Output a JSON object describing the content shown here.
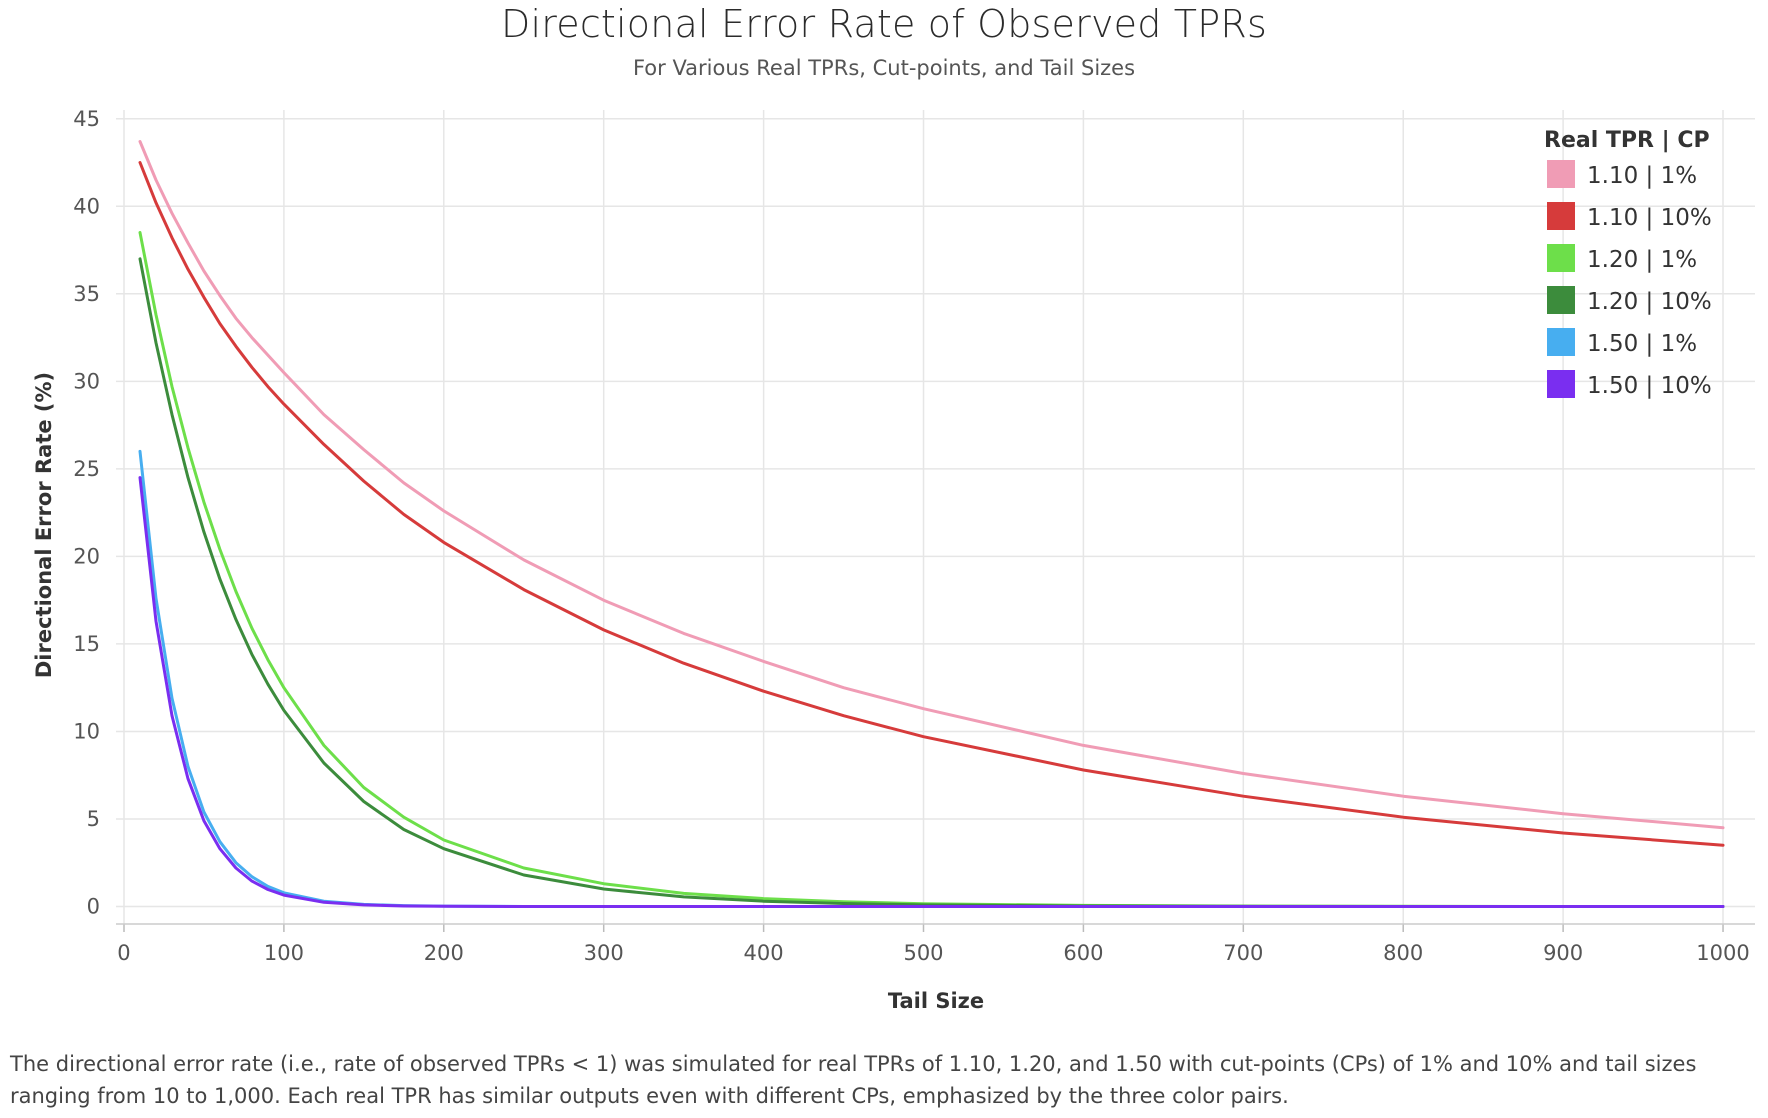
{
  "title": "Directional Error Rate of Observed TPRs",
  "subtitle": "For Various Real TPRs, Cut-points, and Tail Sizes",
  "caption": "The directional error rate (i.e., rate of observed TPRs < 1) was simulated for real TPRs of 1.10, 1.20, and 1.50 with cut-points (CPs) of 1% and 10% and tail sizes ranging from 10 to 1,000. Each real TPR has similar outputs even with different CPs, emphasized by the three color pairs.",
  "chart_data": {
    "type": "line",
    "title": "Directional Error Rate of Observed TPRs",
    "subtitle": "For Various Real TPRs, Cut-points, and Tail Sizes",
    "xlabel": "Tail Size",
    "ylabel": "Directional Error Rate (%)",
    "xlim": [
      -5,
      1020
    ],
    "ylim": [
      -1,
      45.5
    ],
    "xticks": [
      0,
      100,
      200,
      300,
      400,
      500,
      600,
      700,
      800,
      900,
      1000
    ],
    "yticks": [
      0,
      5,
      10,
      15,
      20,
      25,
      30,
      35,
      40,
      45
    ],
    "grid": true,
    "legend": {
      "title": "Real TPR | CP",
      "placement": "top-right"
    },
    "x": [
      10,
      20,
      30,
      40,
      50,
      60,
      70,
      80,
      90,
      100,
      125,
      150,
      175,
      200,
      250,
      300,
      350,
      400,
      450,
      500,
      600,
      700,
      800,
      900,
      1000
    ],
    "series": [
      {
        "name": "1.10 | 1%",
        "color": "#f09cb5",
        "values": [
          43.7,
          41.5,
          39.6,
          37.9,
          36.3,
          34.9,
          33.6,
          32.5,
          31.5,
          30.5,
          28.1,
          26.1,
          24.2,
          22.6,
          19.8,
          17.5,
          15.6,
          14.0,
          12.5,
          11.3,
          9.2,
          7.6,
          6.3,
          5.3,
          4.5
        ]
      },
      {
        "name": "1.10 | 10%",
        "color": "#d63b3b",
        "values": [
          42.5,
          40.2,
          38.2,
          36.4,
          34.8,
          33.3,
          32.0,
          30.8,
          29.7,
          28.7,
          26.4,
          24.3,
          22.4,
          20.8,
          18.1,
          15.8,
          13.9,
          12.3,
          10.9,
          9.7,
          7.8,
          6.3,
          5.1,
          4.2,
          3.5
        ]
      },
      {
        "name": "1.20 | 1%",
        "color": "#6ddf4a",
        "values": [
          38.5,
          33.8,
          29.7,
          26.2,
          23.1,
          20.4,
          18.0,
          15.9,
          14.1,
          12.5,
          9.2,
          6.8,
          5.1,
          3.8,
          2.2,
          1.3,
          0.75,
          0.45,
          0.27,
          0.16,
          0.06,
          0.02,
          0.01,
          0.0,
          0.0
        ]
      },
      {
        "name": "1.20 | 10%",
        "color": "#3c8c3c",
        "values": [
          37.0,
          32.2,
          28.1,
          24.5,
          21.4,
          18.7,
          16.4,
          14.4,
          12.7,
          11.2,
          8.2,
          6.0,
          4.4,
          3.3,
          1.8,
          1.0,
          0.55,
          0.3,
          0.17,
          0.09,
          0.03,
          0.01,
          0.0,
          0.0,
          0.0
        ]
      },
      {
        "name": "1.50 | 1%",
        "color": "#47aef0",
        "values": [
          26.0,
          17.6,
          11.9,
          8.0,
          5.4,
          3.7,
          2.5,
          1.7,
          1.15,
          0.78,
          0.3,
          0.12,
          0.05,
          0.02,
          0.0,
          0.0,
          0.0,
          0.0,
          0.0,
          0.0,
          0.0,
          0.0,
          0.0,
          0.0,
          0.0
        ]
      },
      {
        "name": "1.50 | 10%",
        "color": "#7a2ef0",
        "values": [
          24.5,
          16.3,
          10.9,
          7.3,
          4.9,
          3.3,
          2.2,
          1.45,
          0.97,
          0.65,
          0.24,
          0.09,
          0.03,
          0.01,
          0.0,
          0.0,
          0.0,
          0.0,
          0.0,
          0.0,
          0.0,
          0.0,
          0.0,
          0.0,
          0.0
        ]
      }
    ]
  }
}
